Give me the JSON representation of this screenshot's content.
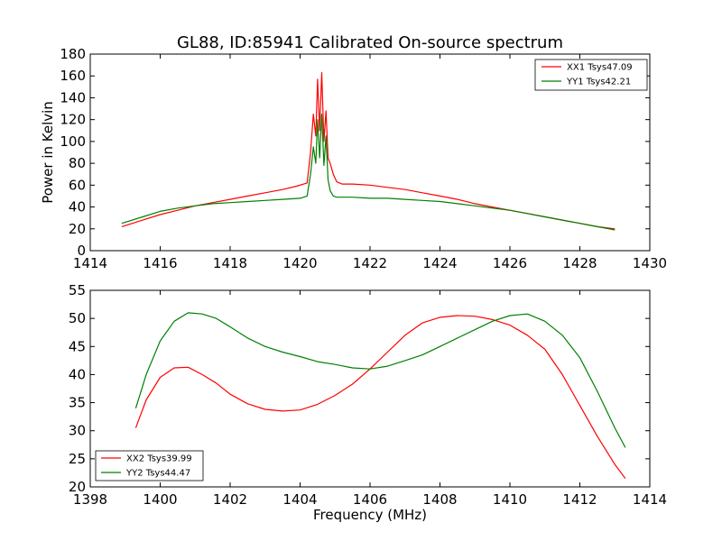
{
  "chart_data": [
    {
      "type": "line",
      "title": "GL88, ID:85941 Calibrated On-source spectrum",
      "xlabel": "",
      "ylabel": "Power in Kelvin",
      "xlim": [
        1414,
        1430
      ],
      "ylim": [
        0,
        180
      ],
      "xticks": [
        1414,
        1416,
        1418,
        1420,
        1422,
        1424,
        1426,
        1428,
        1430
      ],
      "yticks": [
        0,
        20,
        40,
        60,
        80,
        100,
        120,
        140,
        160,
        180
      ],
      "grid": false,
      "legend_position": "top-right",
      "series": [
        {
          "name": "XX1 Tsys47.09",
          "color": "#ff0000",
          "x": [
            1414.9,
            1415.5,
            1416,
            1416.5,
            1417,
            1417.5,
            1418,
            1418.5,
            1419,
            1419.5,
            1419.9,
            1420.2,
            1420.3,
            1420.38,
            1420.45,
            1420.5,
            1420.56,
            1420.62,
            1420.68,
            1420.74,
            1420.8,
            1420.86,
            1420.95,
            1421.05,
            1421.2,
            1421.5,
            1422,
            1422.5,
            1423,
            1423.5,
            1424,
            1424.5,
            1425,
            1425.5,
            1426,
            1426.5,
            1427,
            1427.5,
            1428,
            1428.5,
            1429
          ],
          "y": [
            22,
            28,
            33,
            37,
            41,
            44,
            47,
            50,
            53,
            56,
            59,
            62,
            90,
            125,
            105,
            157,
            110,
            163,
            100,
            128,
            85,
            80,
            70,
            63,
            61,
            61,
            60,
            58,
            56,
            53,
            50,
            47,
            43,
            40,
            37,
            34,
            31,
            28,
            25,
            22,
            20
          ]
        },
        {
          "name": "YY1 Tsys42.21",
          "color": "#008000",
          "x": [
            1414.9,
            1415.5,
            1416,
            1416.5,
            1417,
            1417.5,
            1418,
            1418.5,
            1419,
            1419.5,
            1420,
            1420.2,
            1420.3,
            1420.38,
            1420.45,
            1420.5,
            1420.56,
            1420.62,
            1420.68,
            1420.74,
            1420.8,
            1420.86,
            1420.95,
            1421.05,
            1421.2,
            1421.5,
            1422,
            1422.5,
            1423,
            1423.5,
            1424,
            1424.5,
            1425,
            1425.5,
            1426,
            1426.5,
            1427,
            1427.5,
            1428,
            1428.5,
            1429
          ],
          "y": [
            25,
            31,
            36,
            39,
            41,
            43,
            44,
            45,
            46,
            47,
            48,
            50,
            70,
            95,
            80,
            120,
            85,
            125,
            78,
            105,
            65,
            55,
            50,
            49,
            49,
            49,
            48,
            48,
            47,
            46,
            45,
            43,
            41,
            39,
            37,
            34,
            31,
            28,
            25,
            22,
            19
          ]
        }
      ]
    },
    {
      "type": "line",
      "title": "",
      "xlabel": "Frequency (MHz)",
      "ylabel": "",
      "xlim": [
        1398,
        1414
      ],
      "ylim": [
        20,
        55
      ],
      "xticks": [
        1398,
        1400,
        1402,
        1404,
        1406,
        1408,
        1410,
        1412,
        1414
      ],
      "yticks": [
        20,
        25,
        30,
        35,
        40,
        45,
        50,
        55
      ],
      "grid": false,
      "legend_position": "bottom-left",
      "series": [
        {
          "name": "XX2 Tsys39.99",
          "color": "#ff0000",
          "x": [
            1399.3,
            1399.6,
            1400,
            1400.4,
            1400.8,
            1401.2,
            1401.6,
            1402,
            1402.5,
            1403,
            1403.5,
            1404,
            1404.5,
            1405,
            1405.5,
            1406,
            1406.5,
            1407,
            1407.5,
            1408,
            1408.5,
            1409,
            1409.5,
            1410,
            1410.5,
            1411,
            1411.5,
            1412,
            1412.5,
            1413,
            1413.3
          ],
          "y": [
            30.5,
            35.5,
            39.5,
            41.2,
            41.3,
            40,
            38.5,
            36.5,
            34.8,
            33.8,
            33.5,
            33.7,
            34.7,
            36.3,
            38.3,
            41,
            44,
            47,
            49.2,
            50.2,
            50.5,
            50.4,
            49.8,
            48.8,
            47,
            44.5,
            40,
            34.5,
            29,
            24,
            21.5
          ]
        },
        {
          "name": "YY2 Tsys44.47",
          "color": "#008000",
          "x": [
            1399.3,
            1399.6,
            1400,
            1400.4,
            1400.8,
            1401.2,
            1401.6,
            1402,
            1402.5,
            1403,
            1403.5,
            1404,
            1404.5,
            1405,
            1405.5,
            1406,
            1406.5,
            1407,
            1407.5,
            1408,
            1408.5,
            1409,
            1409.5,
            1410,
            1410.5,
            1411,
            1411.5,
            1412,
            1412.5,
            1413,
            1413.3
          ],
          "y": [
            34,
            40,
            46,
            49.5,
            51,
            50.8,
            50,
            48.5,
            46.5,
            45,
            44,
            43.2,
            42.3,
            41.8,
            41.2,
            41,
            41.5,
            42.5,
            43.5,
            45,
            46.5,
            48,
            49.5,
            50.5,
            50.8,
            49.5,
            47,
            43,
            37,
            30.5,
            27
          ]
        }
      ]
    }
  ]
}
